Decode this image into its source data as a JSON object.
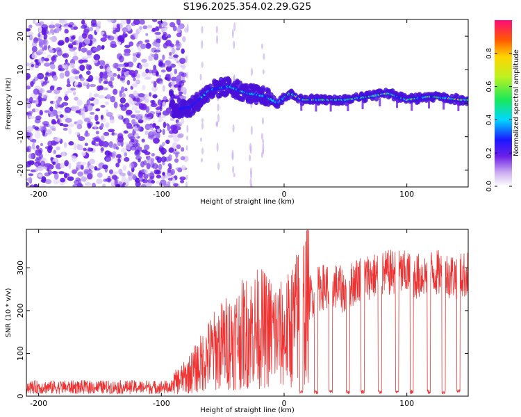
{
  "page": {
    "title": "S196.2025.354.02.29.G25"
  },
  "chart_data": [
    {
      "type": "heatmap",
      "title": "S196.2025.354.02.29.G25",
      "xlabel": "Height of straight line (km)",
      "ylabel": "Frequency (Hz)",
      "xlim": [
        -210,
        150
      ],
      "ylim": [
        -25,
        25
      ],
      "x_ticks": [
        -200,
        -100,
        0,
        100
      ],
      "x_tick_labels": [
        "-200",
        "-100",
        "0",
        "100"
      ],
      "y_ticks": [
        -20,
        -10,
        0,
        10,
        20
      ],
      "y_tick_labels": [
        "-20",
        "-10",
        "0",
        "10",
        "20"
      ],
      "colorbar": {
        "label": "Normalized spectral amplitude",
        "range": [
          0,
          1
        ],
        "ticks": [
          0,
          0.2,
          0.4,
          0.6,
          0.8
        ],
        "tick_labels": [
          "0.0",
          "0.2",
          "0.4",
          "0.6",
          "0.8"
        ],
        "colormap": "rainbow (purple to magenta)"
      },
      "description_series": {
        "noise_region_x": [
          -210,
          -90
        ],
        "ridge_centerline": [
          {
            "x": -90,
            "y": -2
          },
          {
            "x": -75,
            "y": -1
          },
          {
            "x": -60,
            "y": 4
          },
          {
            "x": -45,
            "y": 5
          },
          {
            "x": -30,
            "y": 3
          },
          {
            "x": -15,
            "y": 2
          },
          {
            "x": -5,
            "y": 0
          },
          {
            "x": 5,
            "y": 3
          },
          {
            "x": 15,
            "y": 1
          },
          {
            "x": 30,
            "y": 1
          },
          {
            "x": 50,
            "y": 1
          },
          {
            "x": 70,
            "y": 2
          },
          {
            "x": 85,
            "y": 3
          },
          {
            "x": 100,
            "y": 1
          },
          {
            "x": 120,
            "y": 2
          },
          {
            "x": 145,
            "y": 1
          }
        ]
      }
    },
    {
      "type": "line",
      "xlabel": "Height of straight line (km)",
      "ylabel": "SNR (10 * v/v)",
      "xlim": [
        -210,
        150
      ],
      "ylim": [
        0,
        390
      ],
      "x_ticks": [
        -200,
        -100,
        0,
        100
      ],
      "x_tick_labels": [
        "-200",
        "-100",
        "0",
        "100"
      ],
      "y_ticks": [
        0,
        100,
        200,
        300
      ],
      "y_tick_labels": [
        "0",
        "100",
        "200",
        "300"
      ],
      "series": [
        {
          "name": "SNR",
          "color": "#ee3333",
          "envelope": [
            {
              "x": -210,
              "y": 20
            },
            {
              "x": -100,
              "y": 25
            },
            {
              "x": -90,
              "y": 30
            },
            {
              "x": -80,
              "y": 45
            },
            {
              "x": -70,
              "y": 70
            },
            {
              "x": -60,
              "y": 100
            },
            {
              "x": -50,
              "y": 120
            },
            {
              "x": -40,
              "y": 135
            },
            {
              "x": -30,
              "y": 150
            },
            {
              "x": -20,
              "y": 160
            },
            {
              "x": -10,
              "y": 150
            },
            {
              "x": 0,
              "y": 140
            },
            {
              "x": 10,
              "y": 180
            },
            {
              "x": 20,
              "y": 230
            },
            {
              "x": 30,
              "y": 255
            },
            {
              "x": 40,
              "y": 260
            },
            {
              "x": 50,
              "y": 245
            },
            {
              "x": 60,
              "y": 275
            },
            {
              "x": 70,
              "y": 280
            },
            {
              "x": 80,
              "y": 285
            },
            {
              "x": 90,
              "y": 290
            },
            {
              "x": 100,
              "y": 285
            },
            {
              "x": 110,
              "y": 280
            },
            {
              "x": 120,
              "y": 290
            },
            {
              "x": 130,
              "y": 285
            },
            {
              "x": 140,
              "y": 280
            },
            {
              "x": 150,
              "y": 285
            }
          ],
          "dropouts_x": [
            14,
            26,
            38,
            52,
            64,
            78,
            92,
            104,
            118,
            130,
            142
          ]
        }
      ]
    }
  ]
}
